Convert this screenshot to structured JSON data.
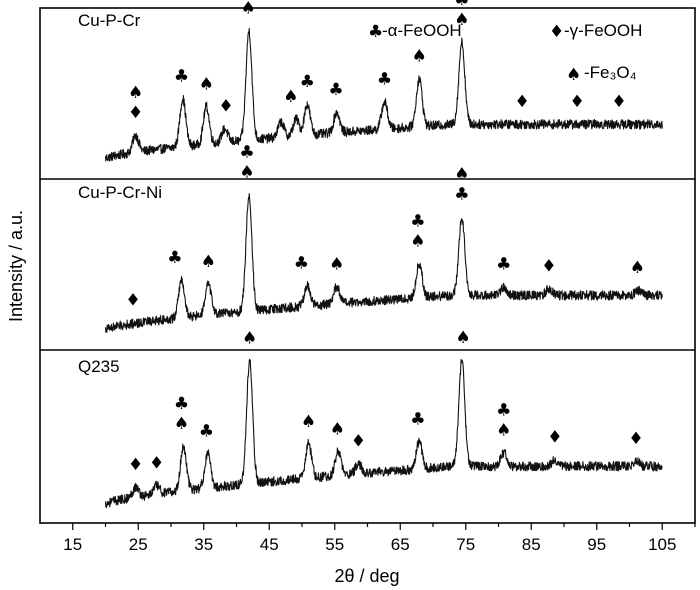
{
  "chart_data": {
    "type": "line",
    "xlabel": "2θ / deg",
    "ylabel": "Intensity / a.u.",
    "xlim": [
      10,
      110
    ],
    "x_ticks": [
      "15",
      "25",
      "35",
      "45",
      "55",
      "65",
      "75",
      "85",
      "95",
      "105"
    ],
    "y_ticks": [],
    "grid": false,
    "legend": {
      "placement": "top-right",
      "entries": [
        {
          "symbol": "club",
          "glyph": "♣",
          "label": "-α-FeOOH"
        },
        {
          "symbol": "diamond",
          "glyph": "♦",
          "label": "-γ-FeOOH"
        },
        {
          "symbol": "spade",
          "glyph": "♠",
          "label": "-Fe₃O₄"
        }
      ]
    },
    "panels": [
      {
        "name": "Cu-P-Cr",
        "x_range": [
          20,
          105
        ],
        "baseline_start": 0.12,
        "baseline_end": 0.32,
        "peaks": [
          {
            "x": 24.6,
            "h": 0.1
          },
          {
            "x": 31.8,
            "h": 0.28
          },
          {
            "x": 35.4,
            "h": 0.22
          },
          {
            "x": 38.2,
            "h": 0.08
          },
          {
            "x": 41.9,
            "h": 0.64
          },
          {
            "x": 46.8,
            "h": 0.09
          },
          {
            "x": 49.1,
            "h": 0.1
          },
          {
            "x": 50.8,
            "h": 0.18
          },
          {
            "x": 55.3,
            "h": 0.12
          },
          {
            "x": 62.6,
            "h": 0.16
          },
          {
            "x": 67.9,
            "h": 0.28
          },
          {
            "x": 74.4,
            "h": 0.48
          }
        ],
        "markers": [
          {
            "x": 24.6,
            "symbols": [
              "diamond",
              "spade"
            ]
          },
          {
            "x": 31.6,
            "symbols": [
              "club"
            ]
          },
          {
            "x": 35.4,
            "symbols": [
              "spade"
            ]
          },
          {
            "x": 38.4,
            "symbols": [
              "diamond"
            ]
          },
          {
            "x": 41.8,
            "symbols": [
              "spade",
              "club"
            ]
          },
          {
            "x": 48.3,
            "symbols": [
              "spade"
            ]
          },
          {
            "x": 50.8,
            "symbols": [
              "club"
            ]
          },
          {
            "x": 55.2,
            "symbols": [
              "club"
            ]
          },
          {
            "x": 62.6,
            "symbols": [
              "club"
            ]
          },
          {
            "x": 67.9,
            "symbols": [
              "spade"
            ]
          },
          {
            "x": 74.4,
            "symbols": [
              "spade",
              "club"
            ]
          },
          {
            "x": 83.6,
            "symbols": [
              "diamond"
            ]
          },
          {
            "x": 92.0,
            "symbols": [
              "diamond"
            ]
          },
          {
            "x": 98.4,
            "symbols": [
              "diamond"
            ]
          }
        ]
      },
      {
        "name": "Cu-P-Cr-Ni",
        "x_range": [
          20,
          105
        ],
        "baseline_start": 0.12,
        "baseline_end": 0.32,
        "peaks": [
          {
            "x": 31.6,
            "h": 0.22
          },
          {
            "x": 35.7,
            "h": 0.18
          },
          {
            "x": 41.9,
            "h": 0.68
          },
          {
            "x": 50.8,
            "h": 0.12
          },
          {
            "x": 55.3,
            "h": 0.1
          },
          {
            "x": 67.9,
            "h": 0.2
          },
          {
            "x": 74.4,
            "h": 0.46
          },
          {
            "x": 80.8,
            "h": 0.05
          },
          {
            "x": 87.7,
            "h": 0.04
          },
          {
            "x": 101.3,
            "h": 0.03
          }
        ],
        "markers": [
          {
            "x": 24.2,
            "symbols": [
              "diamond"
            ]
          },
          {
            "x": 30.6,
            "symbols": [
              "club"
            ]
          },
          {
            "x": 35.7,
            "symbols": [
              "spade"
            ]
          },
          {
            "x": 41.6,
            "symbols": [
              "spade",
              "club"
            ]
          },
          {
            "x": 49.9,
            "symbols": [
              "club"
            ]
          },
          {
            "x": 55.3,
            "symbols": [
              "spade"
            ]
          },
          {
            "x": 67.7,
            "symbols": [
              "spade",
              "club"
            ]
          },
          {
            "x": 74.4,
            "symbols": [
              "club",
              "spade"
            ]
          },
          {
            "x": 80.8,
            "symbols": [
              "club"
            ]
          },
          {
            "x": 87.7,
            "symbols": [
              "diamond"
            ]
          },
          {
            "x": 101.2,
            "symbols": [
              "spade"
            ]
          }
        ]
      },
      {
        "name": "Q235",
        "x_range": [
          20,
          105
        ],
        "baseline_start": 0.1,
        "baseline_end": 0.32,
        "peaks": [
          {
            "x": 24.6,
            "h": 0.06
          },
          {
            "x": 27.8,
            "h": 0.05
          },
          {
            "x": 31.9,
            "h": 0.26
          },
          {
            "x": 35.6,
            "h": 0.2
          },
          {
            "x": 42.0,
            "h": 0.72
          },
          {
            "x": 51.0,
            "h": 0.2
          },
          {
            "x": 55.5,
            "h": 0.14
          },
          {
            "x": 58.6,
            "h": 0.06
          },
          {
            "x": 67.9,
            "h": 0.16
          },
          {
            "x": 74.4,
            "h": 0.62
          },
          {
            "x": 80.8,
            "h": 0.08
          },
          {
            "x": 88.6,
            "h": 0.04
          },
          {
            "x": 101.1,
            "h": 0.03
          }
        ],
        "markers": [
          {
            "x": 24.6,
            "symbols": [
              "diamond"
            ]
          },
          {
            "x": 27.8,
            "symbols": [
              "diamond"
            ]
          },
          {
            "x": 31.6,
            "symbols": [
              "spade",
              "club"
            ]
          },
          {
            "x": 35.4,
            "symbols": [
              "club"
            ]
          },
          {
            "x": 42.0,
            "symbols": [
              "spade"
            ]
          },
          {
            "x": 51.0,
            "symbols": [
              "spade"
            ]
          },
          {
            "x": 55.4,
            "symbols": [
              "spade"
            ]
          },
          {
            "x": 58.6,
            "symbols": [
              "diamond"
            ]
          },
          {
            "x": 67.7,
            "symbols": [
              "club"
            ]
          },
          {
            "x": 74.6,
            "symbols": [
              "spade"
            ]
          },
          {
            "x": 80.8,
            "symbols": [
              "spade",
              "club"
            ]
          },
          {
            "x": 88.6,
            "symbols": [
              "diamond"
            ]
          },
          {
            "x": 101.0,
            "symbols": [
              "diamond"
            ]
          }
        ]
      }
    ]
  }
}
